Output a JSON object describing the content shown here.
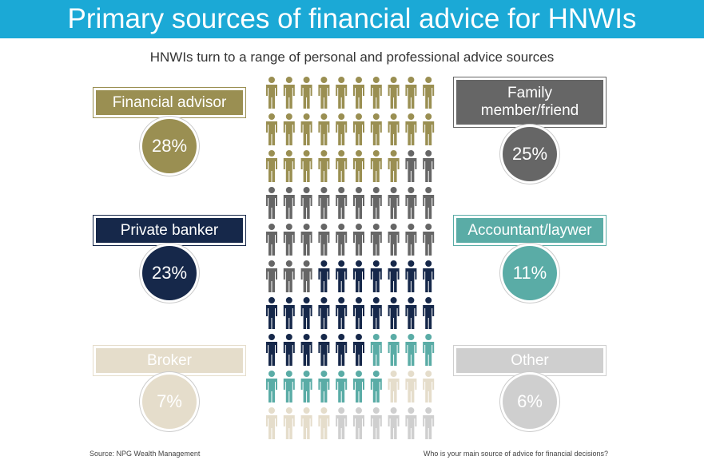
{
  "chart_data": {
    "type": "pictogram",
    "title": "Primary sources of financial advice for HNWIs",
    "subtitle": "HNWIs turn to a range of personal and professional advice sources",
    "categories": [
      "Financial advisor",
      "Family member/friend",
      "Private banker",
      "Accountant/laywer",
      "Broker",
      "Other"
    ],
    "values": [
      28,
      25,
      23,
      11,
      7,
      6
    ],
    "value_labels": [
      "28%",
      "25%",
      "23%",
      "11%",
      "7%",
      "6%"
    ],
    "colors": [
      "#9a8f52",
      "#666666",
      "#16284a",
      "#5aaca6",
      "#e5ddcb",
      "#cfcfcf"
    ],
    "source": "Source: NPG Wealth Management",
    "note": "Who is your main source of advice for financial decisions?"
  }
}
